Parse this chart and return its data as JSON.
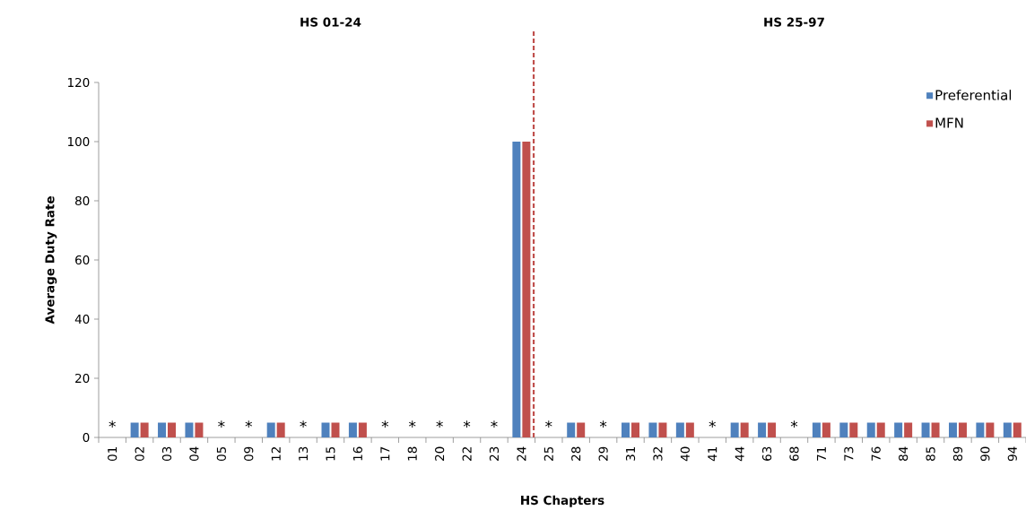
{
  "chart_data": {
    "type": "bar",
    "xlabel": "HS Chapters",
    "ylabel": "Average Duty Rate",
    "categories": [
      "01",
      "02",
      "03",
      "04",
      "05",
      "09",
      "12",
      "13",
      "15",
      "16",
      "17",
      "18",
      "20",
      "22",
      "23",
      "24",
      "25",
      "28",
      "29",
      "31",
      "32",
      "40",
      "41",
      "44",
      "63",
      "68",
      "71",
      "73",
      "76",
      "84",
      "85",
      "89",
      "90",
      "94"
    ],
    "series": [
      {
        "name": "Preferential",
        "color": "#4f81bd",
        "values": [
          null,
          5,
          5,
          5,
          null,
          null,
          5,
          null,
          5,
          5,
          null,
          null,
          null,
          null,
          null,
          100,
          null,
          5,
          null,
          5,
          5,
          5,
          null,
          5,
          5,
          null,
          5,
          5,
          5,
          5,
          5,
          5,
          5,
          5
        ]
      },
      {
        "name": "MFN",
        "color": "#c0504d",
        "values": [
          null,
          5,
          5,
          5,
          null,
          null,
          5,
          null,
          5,
          5,
          null,
          null,
          null,
          null,
          null,
          100,
          null,
          5,
          null,
          5,
          5,
          5,
          null,
          5,
          5,
          null,
          5,
          5,
          5,
          5,
          5,
          5,
          5,
          5
        ]
      }
    ],
    "ylim": [
      0,
      120
    ],
    "yticks": [
      0,
      20,
      40,
      60,
      80,
      100,
      120
    ],
    "legend": "top right",
    "grid": false,
    "ref_lines": [
      {
        "axis": "x",
        "value": "24",
        "color": "#c0504d",
        "line_style": "dashed"
      }
    ],
    "annotations": [
      "HS 01-24",
      "HS 25-97",
      "*",
      "*",
      "*",
      "*",
      "*",
      "*",
      "*",
      "*",
      "*",
      "*",
      "*",
      "*",
      "*"
    ]
  }
}
